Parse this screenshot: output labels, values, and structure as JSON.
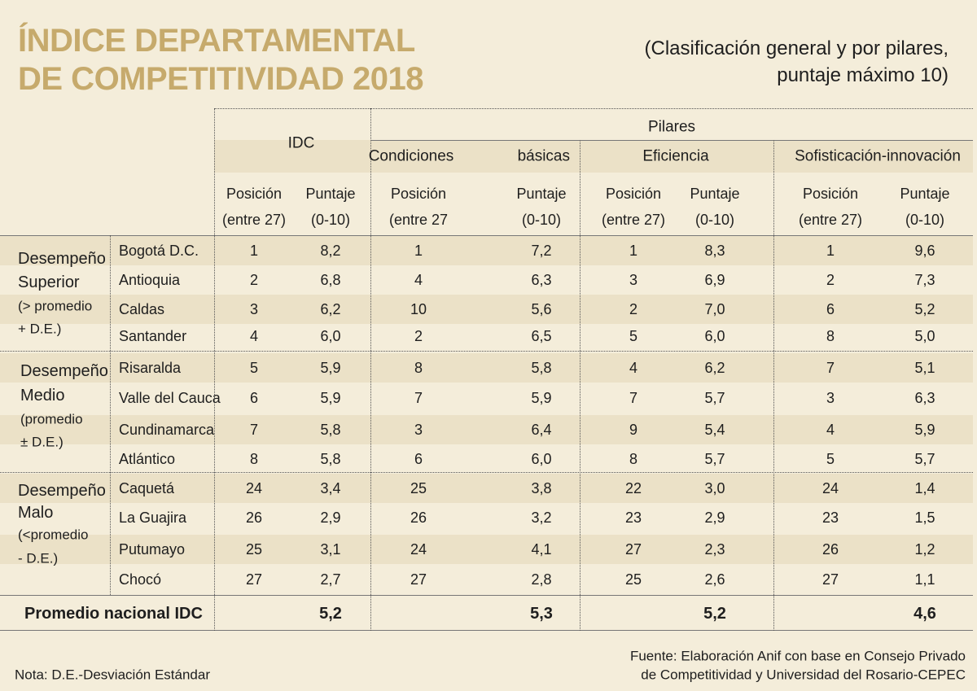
{
  "header": {
    "title": [
      "ÍNDICE DEPARTAMENTAL",
      "DE COMPETITIVIDAD 2018"
    ],
    "subtitle": [
      "(Clasificación general y por pilares,",
      "puntaje máximo 10)"
    ]
  },
  "table": {
    "idc": "IDC",
    "pillars": "Pilares",
    "pillar_names": [
      "Condiciones",
      "básicas",
      "Eficiencia",
      "Sofisticación-innovación"
    ],
    "subheaders": [
      [
        "Posición",
        "(entre 27)"
      ],
      [
        "Puntaje",
        "(0-10)"
      ],
      [
        "Posición",
        "(entre 27"
      ],
      [
        "Puntaje",
        "(0-10)"
      ],
      [
        "Posición",
        "(entre 27)"
      ],
      [
        "Puntaje",
        "(0-10)"
      ],
      [
        "Posición",
        "(entre 27)"
      ],
      [
        "Puntaje",
        "(0-10)"
      ]
    ],
    "groups": [
      {
        "label": [
          "Desempeño",
          "Superior",
          "(> promedio",
          "+ D.E.)"
        ],
        "rows": [
          [
            "Bogotá D.C.",
            1,
            "8,2",
            1,
            "7,2",
            1,
            "8,3",
            1,
            "9,6"
          ],
          [
            "Antioquia",
            2,
            "6,8",
            4,
            "6,3",
            3,
            "6,9",
            2,
            "7,3"
          ],
          [
            "Caldas",
            3,
            "6,2",
            10,
            "5,6",
            2,
            "7,0",
            6,
            "5,2"
          ],
          [
            "Santander",
            4,
            "6,0",
            2,
            "6,5",
            5,
            "6,0",
            8,
            "5,0"
          ]
        ]
      },
      {
        "label": [
          "Desempeño",
          "Medio",
          "(promedio",
          "± D.E.)"
        ],
        "rows": [
          [
            "Risaralda",
            5,
            "5,9",
            8,
            "5,8",
            4,
            "6,2",
            7,
            "5,1"
          ],
          [
            "Valle del Cauca",
            6,
            "5,9",
            7,
            "5,9",
            7,
            "5,7",
            3,
            "6,3"
          ],
          [
            "Cundinamarca",
            7,
            "5,8",
            3,
            "6,4",
            9,
            "5,4",
            4,
            "5,9"
          ],
          [
            "Atlántico",
            8,
            "5,8",
            6,
            "6,0",
            8,
            "5,7",
            5,
            "5,7"
          ]
        ]
      },
      {
        "label": [
          "Desempeño",
          "Malo",
          "(<promedio",
          "- D.E.)"
        ],
        "rows": [
          [
            "Caquetá",
            24,
            "3,4",
            25,
            "3,8",
            22,
            "3,0",
            24,
            "1,4"
          ],
          [
            "La Guajira",
            26,
            "2,9",
            26,
            "3,2",
            23,
            "2,9",
            23,
            "1,5"
          ],
          [
            "Putumayo",
            25,
            "3,1",
            24,
            "4,1",
            27,
            "2,3",
            26,
            "1,2"
          ],
          [
            "Chocó",
            27,
            "2,7",
            27,
            "2,8",
            25,
            "2,6",
            27,
            "1,1"
          ]
        ]
      }
    ],
    "footer": [
      "Promedio nacional IDC",
      "5,2",
      "5,3",
      "5,2",
      "4,6"
    ]
  },
  "notes": {
    "note": "Nota: D.E.-Desviación Estándar",
    "source": [
      "Fuente: Elaboración Anif con base en Consejo Privado",
      "de Competitividad y Universidad del Rosario-CEPEC"
    ]
  }
}
